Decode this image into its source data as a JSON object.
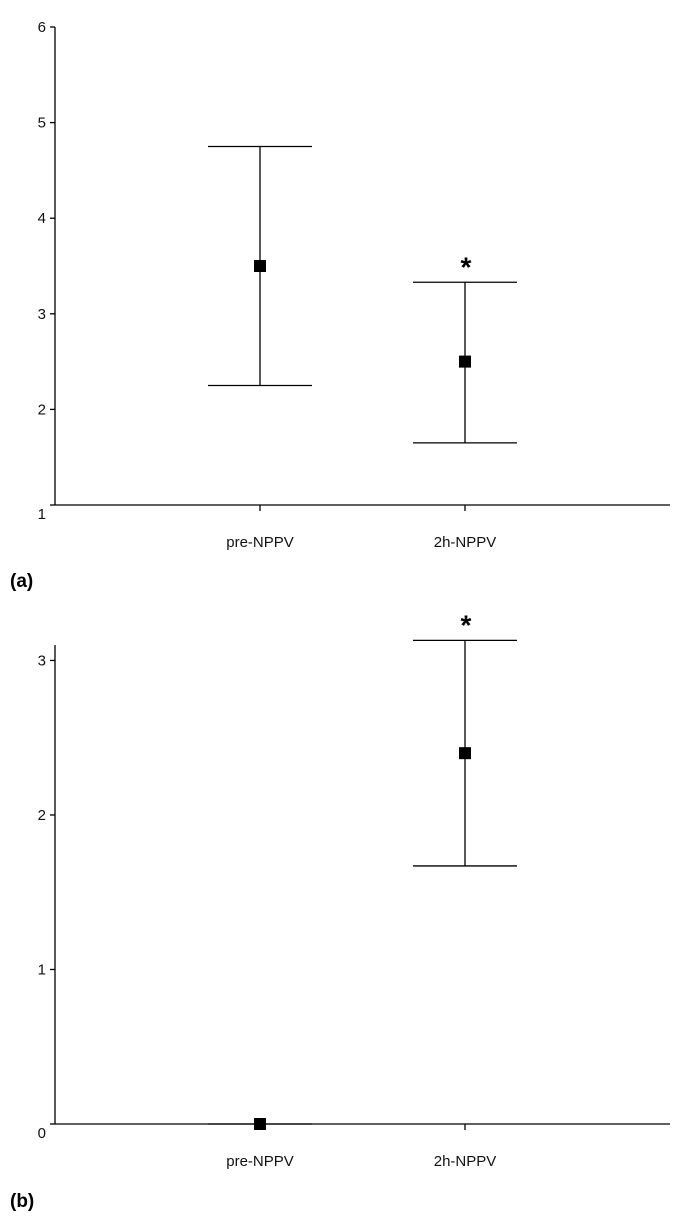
{
  "chart_data": [
    {
      "type": "scatter",
      "panel_label": "(a)",
      "categories": [
        "pre-NPPV",
        "2h-NPPV"
      ],
      "y_ticks": [
        "1",
        "2",
        "3",
        "4",
        "5",
        "6"
      ],
      "ylim": [
        1,
        6
      ],
      "series": [
        {
          "points": [
            {
              "category": "pre-NPPV",
              "mean": 3.5,
              "err_low": 2.25,
              "err_high": 4.75,
              "annotation": ""
            },
            {
              "category": "2h-NPPV",
              "mean": 2.5,
              "err_low": 1.65,
              "err_high": 3.33,
              "annotation": "*"
            }
          ]
        }
      ],
      "grid": false
    },
    {
      "type": "scatter",
      "panel_label": "(b)",
      "categories": [
        "pre-NPPV",
        "2h-NPPV"
      ],
      "y_ticks": [
        "0",
        "1",
        "2",
        "3"
      ],
      "ylim": [
        0,
        3.1
      ],
      "series": [
        {
          "points": [
            {
              "category": "pre-NPPV",
              "mean": 0,
              "err_low": 0,
              "err_high": 0,
              "annotation": ""
            },
            {
              "category": "2h-NPPV",
              "mean": 2.4,
              "err_low": 1.67,
              "err_high": 3.13,
              "annotation": "*"
            }
          ]
        }
      ],
      "grid": false
    }
  ]
}
